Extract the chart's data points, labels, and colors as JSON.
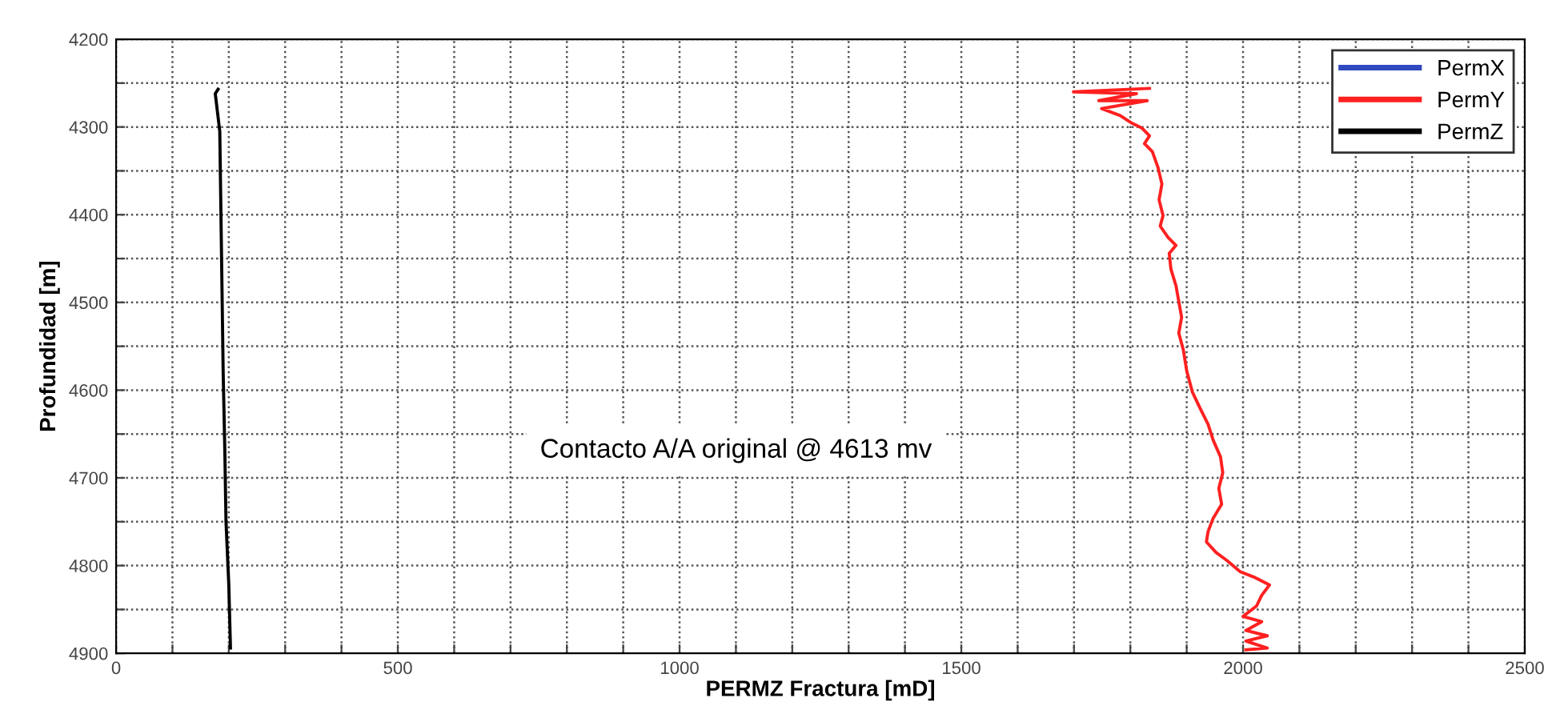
{
  "chart_data": {
    "type": "line",
    "orientation": "horizontal",
    "xlabel": "PERMZ Fractura [mD]",
    "ylabel": "Profundidad [m]",
    "annotations": [
      "Contacto A/A original @ 4613 mv"
    ],
    "xlim": [
      0,
      2500
    ],
    "ylim": [
      4900,
      4200
    ],
    "xticks": [
      0,
      {
        "value": 100,
        "label": null
      },
      {
        "value": 200,
        "label": null
      },
      {
        "value": 300,
        "label": null
      },
      {
        "value": 400,
        "label": null
      },
      500,
      {
        "value": 600,
        "label": null
      },
      {
        "value": 700,
        "label": null
      },
      {
        "value": 800,
        "label": null
      },
      {
        "value": 900,
        "label": null
      },
      1000,
      {
        "value": 1100,
        "label": null
      },
      {
        "value": 1200,
        "label": null
      },
      {
        "value": 1300,
        "label": null
      },
      {
        "value": 1400,
        "label": null
      },
      1500,
      {
        "value": 1600,
        "label": null
      },
      {
        "value": 1700,
        "label": null
      },
      {
        "value": 1800,
        "label": null
      },
      {
        "value": 1900,
        "label": null
      },
      2000,
      {
        "value": 2100,
        "label": null
      },
      {
        "value": 2200,
        "label": null
      },
      {
        "value": 2300,
        "label": null
      },
      {
        "value": 2400,
        "label": null
      },
      2500
    ],
    "yticks": [
      4200,
      {
        "value": 4250,
        "label": null
      },
      4300,
      {
        "value": 4350,
        "label": null
      },
      4400,
      {
        "value": 4450,
        "label": null
      },
      4500,
      {
        "value": 4550,
        "label": null
      },
      4600,
      {
        "value": 4650,
        "label": null
      },
      4700,
      {
        "value": 4750,
        "label": null
      },
      4800,
      {
        "value": 4850,
        "label": null
      },
      4900
    ],
    "grid": true,
    "legend": "top right",
    "marker": "none",
    "line_style": "solid",
    "series": [
      {
        "name": "PermX",
        "color": "#3048c0"
      },
      {
        "name": "PermY",
        "color": "#ff2020",
        "x": [
          4256,
          4260,
          4262,
          4270,
          4270,
          4279,
          4287,
          4295,
          4301,
          4310,
          4319,
          4328,
          4346,
          4365,
          4383,
          4401,
          4413,
          4426,
          4435,
          4444,
          4462,
          4481,
          4499,
          4517,
          4535,
          4554,
          4578,
          4602,
          4621,
          4639,
          4657,
          4676,
          4694,
          4712,
          4730,
          4746,
          4761,
          4773,
          4785,
          4794,
          4807,
          4813,
          4822,
          4834,
          4846,
          4858,
          4864,
          4874,
          4880,
          4886,
          4894,
          4896
        ],
        "values": [
          1834,
          1699,
          1811,
          1744,
          1830,
          1749,
          1782,
          1801,
          1820,
          1834,
          1825,
          1839,
          1849,
          1856,
          1851,
          1858,
          1853,
          1867,
          1881,
          1869,
          1872,
          1881,
          1886,
          1891,
          1886,
          1894,
          1900,
          1910,
          1924,
          1938,
          1947,
          1960,
          1964,
          1957,
          1962,
          1947,
          1938,
          1935,
          1952,
          1971,
          1995,
          2019,
          2047,
          2033,
          2024,
          2000,
          2033,
          2005,
          2043,
          2005,
          2043,
          2005
        ]
      },
      {
        "name": "PermZ",
        "color": "#000000",
        "x": [
          4257,
          4262,
          4305,
          4396,
          4487,
          4579,
          4670,
          4749,
          4822,
          4894
        ],
        "values": [
          181,
          176,
          184,
          186,
          188,
          190,
          193,
          195,
          200,
          203
        ]
      }
    ]
  }
}
